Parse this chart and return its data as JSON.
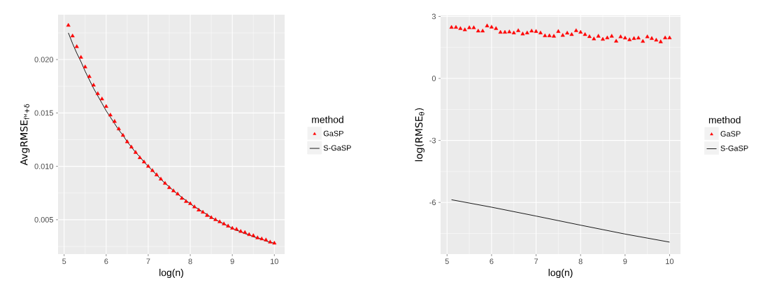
{
  "chart_data": [
    {
      "type": "scatter",
      "xlabel": "log(n)",
      "ylabel": "AvgRMSE$_{fᴹ+δ}$",
      "legend_title": "method",
      "legend": "right",
      "grid": true,
      "x": [
        5.1,
        5.2,
        5.3,
        5.4,
        5.5,
        5.6,
        5.7,
        5.8,
        5.9,
        6.0,
        6.1,
        6.2,
        6.3,
        6.4,
        6.5,
        6.6,
        6.7,
        6.8,
        6.9,
        7.0,
        7.1,
        7.2,
        7.3,
        7.4,
        7.5,
        7.6,
        7.7,
        7.8,
        7.9,
        8.0,
        8.1,
        8.2,
        8.3,
        8.4,
        8.5,
        8.6,
        8.7,
        8.8,
        8.9,
        9.0,
        9.1,
        9.2,
        9.3,
        9.4,
        9.5,
        9.6,
        9.7,
        9.8,
        9.9,
        10.0
      ],
      "xlim": [
        4.855,
        10.245
      ],
      "xticks": [
        5,
        6,
        7,
        8,
        9,
        10
      ],
      "ylim": [
        0.00178,
        0.0242
      ],
      "yticks": [
        {
          "value": 0.005,
          "label": "0.005"
        },
        {
          "value": 0.01,
          "label": "0.010"
        },
        {
          "value": 0.015,
          "label": "0.015"
        },
        {
          "value": 0.02,
          "label": "0.020"
        }
      ],
      "series": [
        {
          "name": "GaSP",
          "color": "#ff0000",
          "marker": "triangle",
          "values": [
            0.0232,
            0.0222,
            0.0212,
            0.0202,
            0.0193,
            0.0184,
            0.0176,
            0.0168,
            0.0163,
            0.0156,
            0.0148,
            0.0142,
            0.0135,
            0.0129,
            0.0123,
            0.0118,
            0.0113,
            0.0108,
            0.0104,
            0.01,
            0.0096,
            0.0092,
            0.0088,
            0.0084,
            0.008,
            0.0077,
            0.0074,
            0.007,
            0.0067,
            0.0065,
            0.0062,
            0.0059,
            0.0057,
            0.0054,
            0.0052,
            0.005,
            0.0048,
            0.0046,
            0.0044,
            0.0042,
            0.0041,
            0.0039,
            0.0038,
            0.0036,
            0.0035,
            0.0033,
            0.0032,
            0.0031,
            0.0029,
            0.0028
          ]
        },
        {
          "name": "S-GaSP",
          "type": "line",
          "color": "#000000",
          "marker": "none",
          "values": [
            0.0225,
            0.0215,
            0.0206,
            0.0198,
            0.0189,
            0.0181,
            0.0173,
            0.0166,
            0.0159,
            0.0152,
            0.0146,
            0.014,
            0.0134,
            0.0129,
            0.0123,
            0.0118,
            0.0113,
            0.0109,
            0.0104,
            0.01,
            0.0096,
            0.0092,
            0.0088,
            0.0084,
            0.0081,
            0.0077,
            0.0074,
            0.0071,
            0.0068,
            0.0065,
            0.0062,
            0.006,
            0.0057,
            0.0055,
            0.0052,
            0.005,
            0.0048,
            0.0046,
            0.0044,
            0.0042,
            0.004,
            0.0039,
            0.0037,
            0.0036,
            0.0034,
            0.0033,
            0.0032,
            0.003,
            0.0029,
            0.0028
          ]
        }
      ]
    },
    {
      "type": "scatter",
      "xlabel": "log(n)",
      "ylabel": "log(RMSE$_{θ}$)",
      "legend_title": "method",
      "legend": "right",
      "grid": true,
      "x": [
        5.1,
        5.2,
        5.3,
        5.4,
        5.5,
        5.6,
        5.7,
        5.8,
        5.9,
        6.0,
        6.1,
        6.2,
        6.3,
        6.4,
        6.5,
        6.6,
        6.7,
        6.8,
        6.9,
        7.0,
        7.1,
        7.2,
        7.3,
        7.4,
        7.5,
        7.6,
        7.7,
        7.8,
        7.9,
        8.0,
        8.1,
        8.2,
        8.3,
        8.4,
        8.5,
        8.6,
        8.7,
        8.8,
        8.9,
        9.0,
        9.1,
        9.2,
        9.3,
        9.4,
        9.5,
        9.6,
        9.7,
        9.8,
        9.9,
        10.0
      ],
      "xlim": [
        4.855,
        10.245
      ],
      "xticks": [
        5,
        6,
        7,
        8,
        9,
        10
      ],
      "ylim": [
        -8.5,
        3.05
      ],
      "yticks": [
        -6,
        -3,
        0,
        3
      ],
      "series": [
        {
          "name": "GaSP",
          "color": "#ff0000",
          "marker": "triangle",
          "values": [
            2.47,
            2.47,
            2.41,
            2.35,
            2.45,
            2.45,
            2.29,
            2.29,
            2.54,
            2.48,
            2.41,
            2.23,
            2.23,
            2.25,
            2.2,
            2.31,
            2.15,
            2.2,
            2.29,
            2.27,
            2.2,
            2.06,
            2.06,
            2.04,
            2.27,
            2.08,
            2.19,
            2.12,
            2.31,
            2.23,
            2.12,
            2.02,
            1.91,
            2.04,
            1.89,
            1.96,
            2.04,
            1.8,
            2.01,
            1.95,
            1.87,
            1.93,
            1.95,
            1.79,
            2.01,
            1.93,
            1.85,
            1.77,
            1.96,
            1.96
          ]
        },
        {
          "name": "S-GaSP",
          "type": "line",
          "color": "#000000",
          "marker": "none",
          "x": [
            5.1,
            6,
            7,
            8,
            9,
            10
          ],
          "values": [
            -5.87,
            -6.23,
            -6.66,
            -7.1,
            -7.53,
            -7.92
          ]
        }
      ]
    }
  ]
}
